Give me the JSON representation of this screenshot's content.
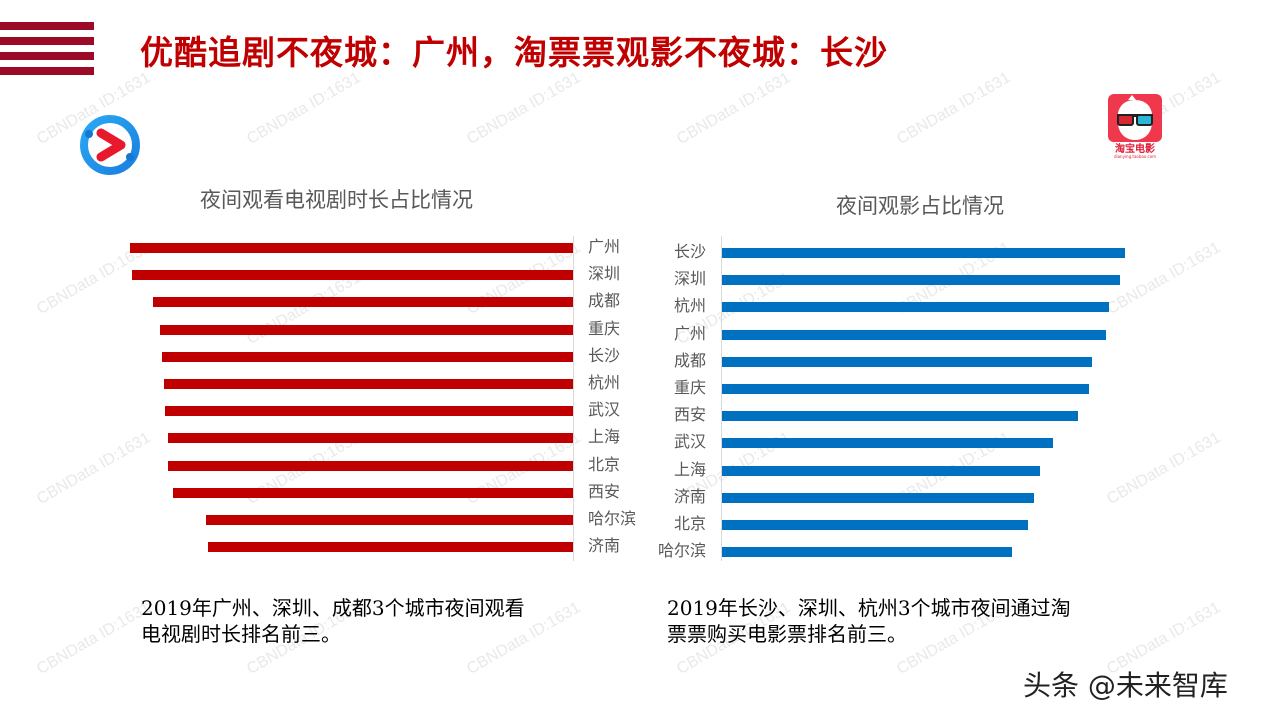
{
  "header": {
    "title": "优酷追剧不夜城：广州，淘票票观影不夜城：长沙"
  },
  "logos": {
    "left": "youku-logo",
    "right": "taopiaopiao-movie-logo",
    "right_text": "淘宝电影",
    "right_subtext": "dianying.taobao.com"
  },
  "watermark_text": "CBNData ID:1631",
  "left_chart": {
    "title": "夜间观看电视剧时长占比情况",
    "bar_color": "#c00000",
    "caption_line1": "2019年广州、深圳、成都3个城市夜间观看",
    "caption_line2": "电视剧时长排名前三。"
  },
  "right_chart": {
    "title": "夜间观影占比情况",
    "bar_color": "#0070c0",
    "caption_line1": "2019年长沙、深圳、杭州3个城市夜间通过淘",
    "caption_line2": "票票购买电影票排名前三。"
  },
  "footer": {
    "text": "头条 @未来智库"
  },
  "chart_data": [
    {
      "type": "bar",
      "orientation": "horizontal",
      "title": "夜间观看电视剧时长占比情况",
      "categories": [
        "广州",
        "深圳",
        "成都",
        "重庆",
        "长沙",
        "杭州",
        "武汉",
        "上海",
        "北京",
        "西安",
        "哈尔滨",
        "济南"
      ],
      "values": [
        100,
        99.5,
        94.8,
        93.2,
        92.8,
        92.3,
        92.1,
        91.4,
        91.4,
        90.3,
        82.8,
        82.4
      ],
      "value_note": "relative bar lengths (max = 100); no axis values shown",
      "xlabel": "",
      "ylabel": "",
      "grid": false,
      "axis_side": "right",
      "color": "#c00000"
    },
    {
      "type": "bar",
      "orientation": "horizontal",
      "title": "夜间观影占比情况",
      "categories": [
        "长沙",
        "深圳",
        "杭州",
        "广州",
        "成都",
        "重庆",
        "西安",
        "武汉",
        "上海",
        "济南",
        "北京",
        "哈尔滨"
      ],
      "values": [
        100,
        98.8,
        96.0,
        95.3,
        91.8,
        91.1,
        88.3,
        82.1,
        78.9,
        77.4,
        75.9,
        72.0
      ],
      "value_note": "relative bar lengths (max = 100); no axis values shown",
      "xlabel": "",
      "ylabel": "",
      "grid": false,
      "axis_side": "left",
      "color": "#0070c0"
    }
  ]
}
